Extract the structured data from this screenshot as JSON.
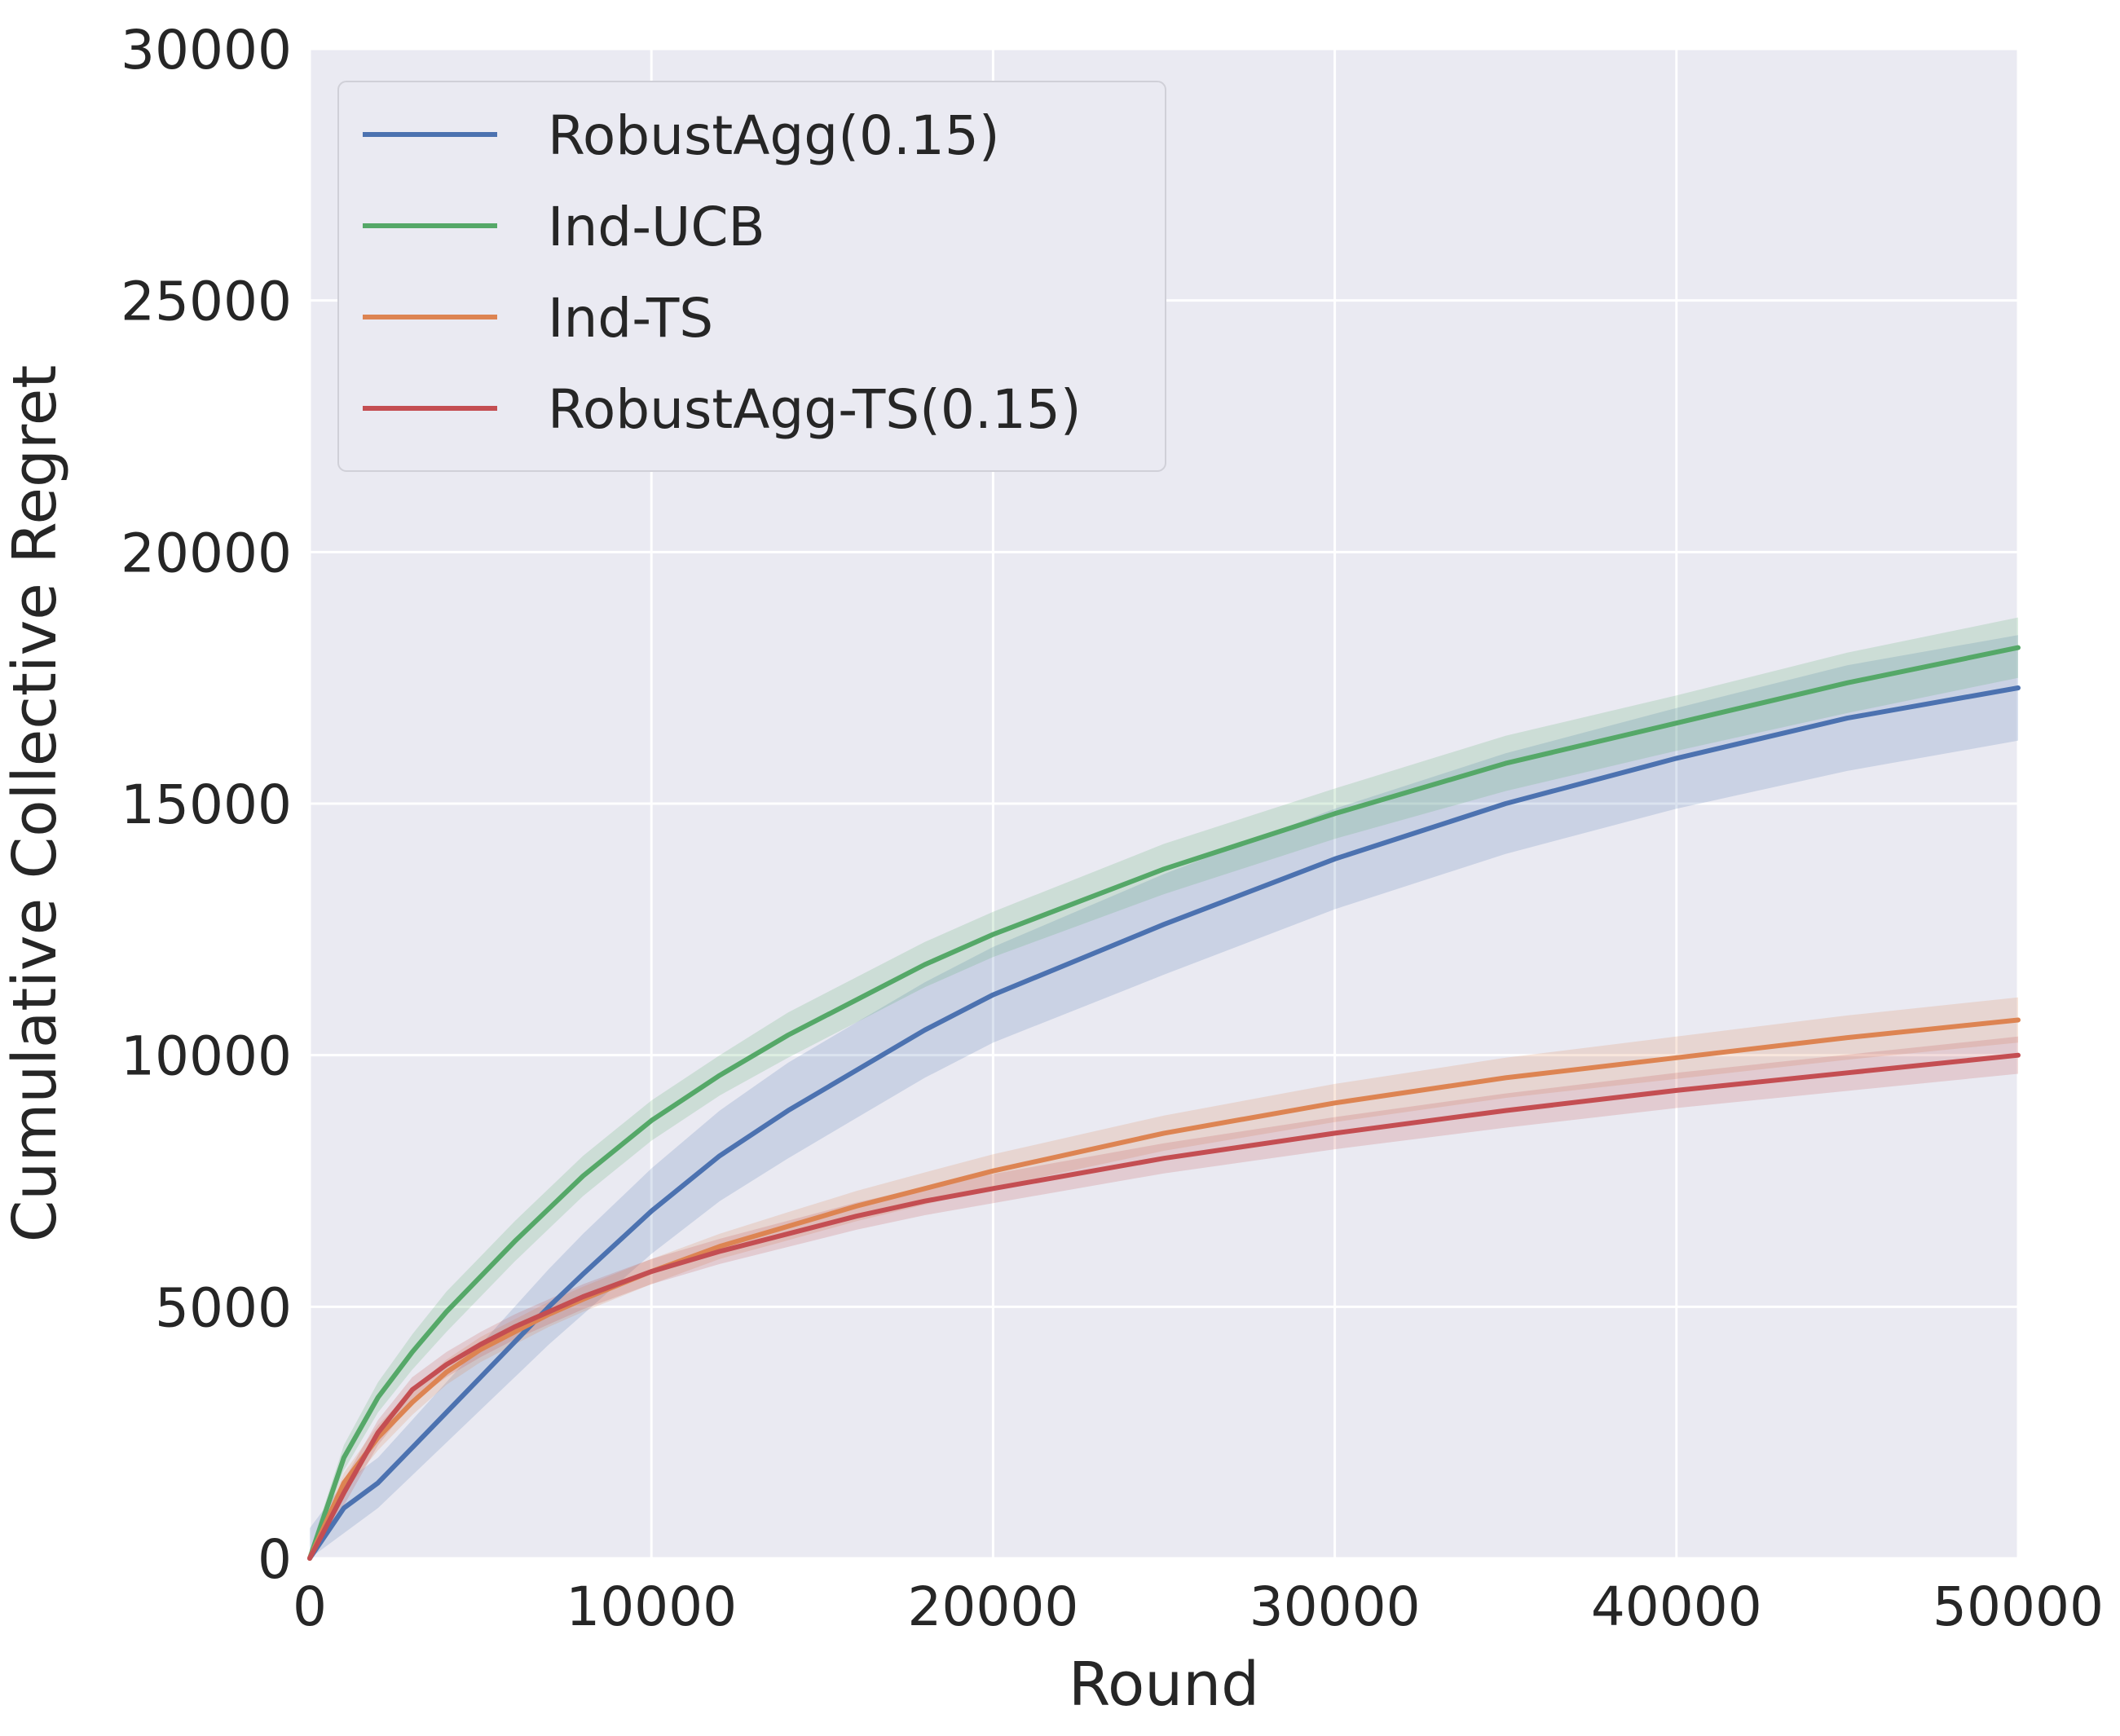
{
  "chart_data": {
    "type": "line",
    "title": "",
    "xlabel": "Round",
    "ylabel": "Cumulative Collective Regret",
    "xlim": [
      0,
      50000
    ],
    "ylim": [
      0,
      30000
    ],
    "xticks": [
      0,
      10000,
      20000,
      30000,
      40000,
      50000
    ],
    "yticks": [
      0,
      5000,
      10000,
      15000,
      20000,
      25000,
      30000
    ],
    "grid": true,
    "legend_position": "top-left",
    "x": [
      0,
      1000,
      2000,
      3000,
      4000,
      5000,
      6000,
      7000,
      8000,
      10000,
      12000,
      14000,
      16000,
      18000,
      20000,
      25000,
      30000,
      35000,
      40000,
      45000,
      50000
    ],
    "series": [
      {
        "name": "RobustAgg(0.15)",
        "color": "#4c72b0",
        "values": [
          0,
          1000,
          1500,
          2200,
          2900,
          3600,
          4300,
          5000,
          5650,
          6900,
          8000,
          8900,
          9700,
          10500,
          11200,
          12600,
          13900,
          15000,
          15900,
          16700,
          17300
        ],
        "band": [
          600,
          500,
          500,
          550,
          600,
          650,
          700,
          750,
          800,
          850,
          900,
          950,
          950,
          950,
          950,
          1000,
          1000,
          1000,
          1000,
          1050,
          1050
        ]
      },
      {
        "name": "Ind-UCB",
        "color": "#55a868",
        "values": [
          0,
          2000,
          3200,
          4100,
          4900,
          5600,
          6300,
          6950,
          7600,
          8700,
          9600,
          10400,
          11100,
          11800,
          12400,
          13700,
          14800,
          15800,
          16600,
          17400,
          18100
        ],
        "band": [
          150,
          250,
          300,
          350,
          400,
          400,
          400,
          400,
          400,
          400,
          400,
          450,
          450,
          450,
          450,
          500,
          500,
          550,
          550,
          600,
          600
        ]
      },
      {
        "name": "Ind-TS",
        "color": "#dd8452",
        "values": [
          0,
          1500,
          2400,
          3100,
          3700,
          4150,
          4500,
          4850,
          5150,
          5700,
          6200,
          6600,
          7000,
          7350,
          7700,
          8450,
          9050,
          9550,
          9950,
          10350,
          10700
        ],
        "band": [
          150,
          200,
          250,
          250,
          250,
          250,
          250,
          250,
          250,
          250,
          250,
          280,
          300,
          320,
          330,
          350,
          380,
          400,
          420,
          440,
          450
        ]
      },
      {
        "name": "RobustAgg-TS(0.15)",
        "color": "#c44e52",
        "values": [
          0,
          1300,
          2500,
          3350,
          3850,
          4250,
          4600,
          4900,
          5200,
          5700,
          6100,
          6450,
          6800,
          7100,
          7350,
          7950,
          8450,
          8900,
          9300,
          9650,
          10000
        ],
        "band": [
          150,
          250,
          250,
          250,
          250,
          250,
          250,
          250,
          250,
          250,
          250,
          260,
          270,
          280,
          290,
          300,
          320,
          340,
          350,
          360,
          370
        ]
      }
    ]
  }
}
